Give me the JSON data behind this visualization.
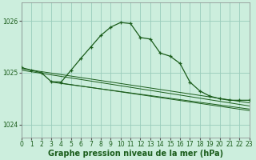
{
  "title": "Graphe pression niveau de la mer (hPa)",
  "bg_color": "#cceedd",
  "grid_color": "#99ccbb",
  "line_color": "#1a5c1a",
  "xlim": [
    0,
    23
  ],
  "ylim": [
    1023.75,
    1026.35
  ],
  "yticks": [
    1024,
    1025,
    1026
  ],
  "xticks": [
    0,
    1,
    2,
    3,
    4,
    5,
    6,
    7,
    8,
    9,
    10,
    11,
    12,
    13,
    14,
    15,
    16,
    17,
    18,
    19,
    20,
    21,
    22,
    23
  ],
  "main_line_x": [
    0,
    1,
    2,
    3,
    4,
    5,
    6,
    7,
    8,
    9,
    10,
    11,
    12,
    13,
    14,
    15,
    16,
    17,
    18,
    19,
    20,
    21,
    22,
    23
  ],
  "main_line_y": [
    1025.1,
    1025.05,
    1025.0,
    1024.83,
    1024.82,
    1025.05,
    1025.28,
    1025.5,
    1025.72,
    1025.88,
    1025.97,
    1025.95,
    1025.68,
    1025.65,
    1025.38,
    1025.32,
    1025.18,
    1024.82,
    1024.65,
    1024.55,
    1024.5,
    1024.47,
    1024.47,
    1024.47
  ],
  "trend_lines": [
    {
      "x": [
        0,
        23
      ],
      "y": [
        1025.08,
        1024.42
      ]
    },
    {
      "x": [
        0,
        23
      ],
      "y": [
        1025.05,
        1024.36
      ]
    },
    {
      "x": [
        3,
        23
      ],
      "y": [
        1024.82,
        1024.3
      ]
    },
    {
      "x": [
        4,
        23
      ],
      "y": [
        1024.8,
        1024.27
      ]
    }
  ],
  "font_size_label": 7,
  "font_size_tick": 5.5,
  "marker_size": 2.5,
  "lw_main": 0.9,
  "lw_trend": 0.7
}
